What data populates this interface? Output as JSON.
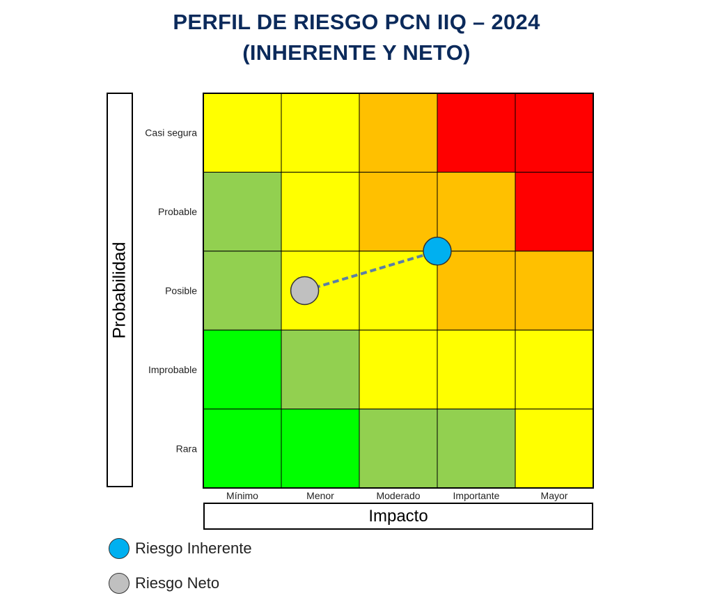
{
  "title": {
    "line1": "PERFIL DE RIESGO PCN IIQ – 2024",
    "line2": "(INHERENTE Y NETO)"
  },
  "colors": {
    "title": "#0b2a5b",
    "red": "#ff0000",
    "orange": "#ffc000",
    "yellow": "#ffff00",
    "lightgreen": "#92d050",
    "green": "#00ff00",
    "inherente": "#00b0f0",
    "neto": "#c0c0c0",
    "connector": "#5b7fa6"
  },
  "legend": [
    {
      "label": "Riesgo Inherente",
      "color": "#00b0f0"
    },
    {
      "label": "Riesgo Neto",
      "color": "#c0c0c0"
    }
  ],
  "chart_data": {
    "type": "heatmap",
    "title": "PERFIL DE RIESGO PCN IIQ – 2024 (INHERENTE Y NETO)",
    "xlabel": "Impacto",
    "ylabel": "Probabilidad",
    "x_categories": [
      "Mínimo",
      "Menor",
      "Moderado",
      "Importante",
      "Mayor"
    ],
    "y_categories": [
      "Casi segura",
      "Probable",
      "Posible",
      "Improbable",
      "Rara"
    ],
    "cells": [
      [
        "yellow",
        "yellow",
        "orange",
        "red",
        "red"
      ],
      [
        "lightgreen",
        "yellow",
        "orange",
        "orange",
        "red"
      ],
      [
        "lightgreen",
        "yellow",
        "yellow",
        "orange",
        "orange"
      ],
      [
        "green",
        "lightgreen",
        "yellow",
        "yellow",
        "yellow"
      ],
      [
        "green",
        "green",
        "lightgreen",
        "lightgreen",
        "yellow"
      ]
    ],
    "points": [
      {
        "name": "Riesgo Inherente",
        "impacto": 3.0,
        "probabilidad": 3.0,
        "color": "#00b0f0"
      },
      {
        "name": "Riesgo Neto",
        "impacto": 1.3,
        "probabilidad": 2.5,
        "color": "#c0c0c0"
      }
    ],
    "connector": {
      "from": "Riesgo Neto",
      "to": "Riesgo Inherente",
      "style": "dashed"
    }
  }
}
